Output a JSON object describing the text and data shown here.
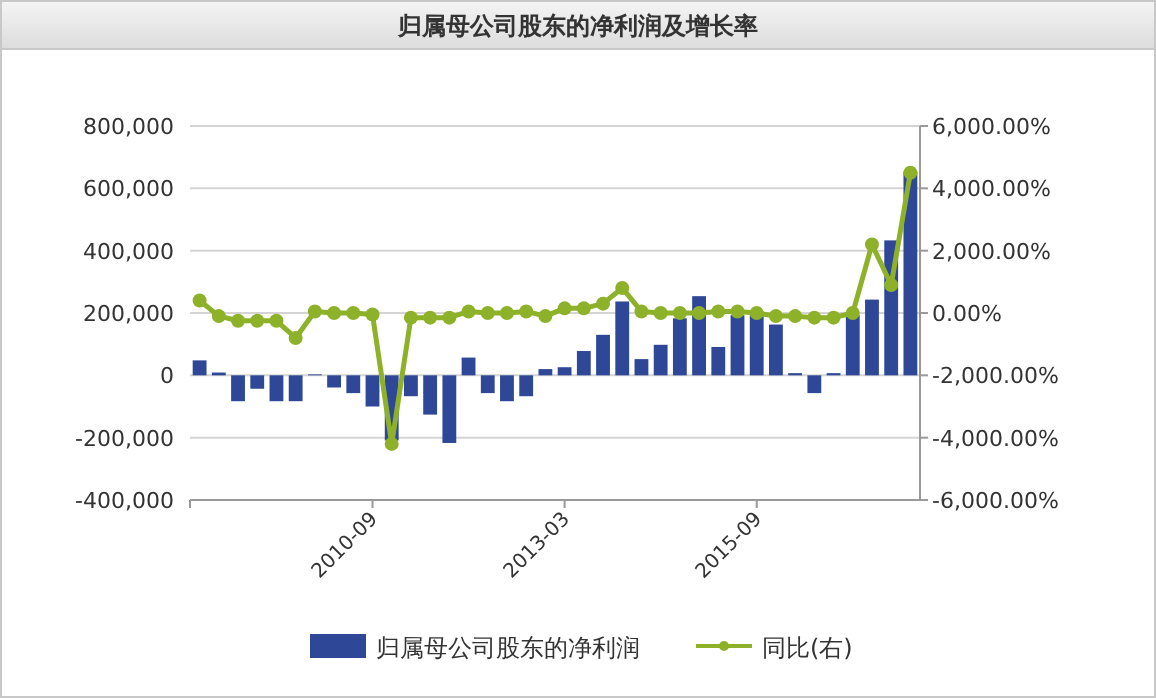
{
  "chart_data": {
    "type": "bar",
    "title": "归属母公司股东的净利润及增长率",
    "categories": [
      null,
      null,
      null,
      null,
      null,
      null,
      null,
      null,
      null,
      "2010-09",
      null,
      null,
      null,
      null,
      null,
      null,
      null,
      null,
      null,
      "2013-03",
      null,
      null,
      null,
      null,
      null,
      null,
      null,
      null,
      null,
      "2015-09",
      null,
      null,
      null,
      null,
      null,
      null,
      null,
      null
    ],
    "series": [
      {
        "name": "归属母公司股东的净利润",
        "color": "#2e4796",
        "values": [
          48000,
          9000,
          -83000,
          -43000,
          -83000,
          -83000,
          3000,
          -39000,
          -57000,
          -100000,
          -209000,
          -67000,
          -126000,
          -217000,
          57000,
          -57000,
          -83000,
          -67000,
          20000,
          26000,
          78000,
          130000,
          237000,
          52000,
          98000,
          183000,
          254000,
          91000,
          193000,
          193000,
          163000,
          7000,
          -57000,
          7000,
          193000,
          243000,
          433000,
          654000
        ]
      },
      {
        "name": "同比(右)",
        "type": "line",
        "axis": "y2",
        "color": "#8db22a",
        "values": [
          400,
          -100,
          -250,
          -250,
          -250,
          -800,
          50,
          0,
          0,
          -50,
          -4200,
          -150,
          -150,
          -150,
          50,
          0,
          0,
          50,
          -100,
          150,
          150,
          300,
          800,
          50,
          0,
          0,
          0,
          50,
          50,
          0,
          -100,
          -100,
          -150,
          -150,
          0,
          2200,
          900,
          4500
        ]
      }
    ],
    "ylim": [
      -400000,
      800000
    ],
    "yticks": [
      {
        "value": -400000,
        "label": "-400,000"
      },
      {
        "value": -200000,
        "label": "-200,000"
      },
      0,
      {
        "value": 200000,
        "label": "200,000"
      },
      {
        "value": 400000,
        "label": "400,000"
      },
      {
        "value": 600000,
        "label": "600,000"
      },
      {
        "value": 800000,
        "label": "800,000"
      }
    ],
    "y2lim": [
      -6000,
      6000
    ],
    "y2ticks": [
      {
        "value": -6000,
        "label": "-6,000.00%"
      },
      {
        "value": -4000,
        "label": "-4,000.00%"
      },
      {
        "value": -2000,
        "label": "-2,000.00%"
      },
      {
        "value": 0,
        "label": "0.00%"
      },
      {
        "value": 2000,
        "label": "2,000.00%"
      },
      {
        "value": 4000,
        "label": "4,000.00%"
      },
      {
        "value": 6000,
        "label": "6,000.00%"
      }
    ],
    "grid": "y",
    "legend": "bottom",
    "marker": "circle"
  }
}
